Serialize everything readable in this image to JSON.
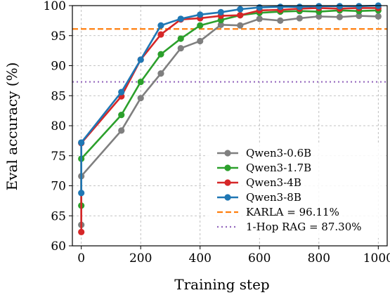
{
  "chart_data": {
    "type": "line",
    "xlabel": "Training step",
    "ylabel": "Eval accuracy (%)",
    "xlim": [
      -30,
      1030
    ],
    "ylim": [
      60,
      100
    ],
    "xticks": [
      0,
      200,
      400,
      600,
      800,
      1000
    ],
    "yticks": [
      60,
      65,
      70,
      75,
      80,
      85,
      90,
      95,
      100
    ],
    "xtick_labels": [
      "0",
      "200",
      "400",
      "600",
      "800",
      "1000"
    ],
    "ytick_labels": [
      "60",
      "65",
      "70",
      "75",
      "80",
      "85",
      "90",
      "95",
      "100"
    ],
    "grid": true,
    "legend_position": "lower-right",
    "series": [
      {
        "name": "Qwen3-0.6B",
        "color": "#7f7f7f",
        "x": [
          0,
          0,
          135,
          200,
          268,
          335,
          400,
          470,
          535,
          600,
          670,
          735,
          800,
          870,
          935,
          1000
        ],
        "y": [
          63.5,
          71.6,
          79.2,
          84.6,
          88.7,
          92.9,
          94.1,
          96.8,
          96.7,
          97.8,
          97.5,
          97.9,
          98.2,
          98.1,
          98.3,
          98.2
        ]
      },
      {
        "name": "Qwen3-1.7B",
        "color": "#2ca02c",
        "x": [
          0,
          0,
          135,
          200,
          268,
          335,
          400,
          470,
          535,
          600,
          670,
          735,
          800,
          870,
          935,
          1000
        ],
        "y": [
          66.7,
          74.5,
          81.8,
          87.3,
          91.9,
          94.5,
          96.7,
          97.6,
          98.4,
          98.8,
          99.0,
          99.1,
          99.0,
          99.2,
          99.1,
          99.2
        ]
      },
      {
        "name": "Qwen3-4B",
        "color": "#d62728",
        "x": [
          0,
          0,
          135,
          200,
          268,
          335,
          400,
          470,
          535,
          600,
          670,
          735,
          800,
          870,
          935,
          1000
        ],
        "y": [
          62.3,
          77.1,
          84.9,
          91.0,
          95.2,
          97.7,
          97.9,
          98.3,
          98.4,
          99.2,
          99.3,
          99.5,
          99.6,
          99.5,
          99.6,
          99.6
        ]
      },
      {
        "name": "Qwen3-8B",
        "color": "#1f77b4",
        "x": [
          0,
          0,
          135,
          200,
          268,
          335,
          400,
          470,
          535,
          600,
          670,
          735,
          800,
          870,
          935,
          1000
        ],
        "y": [
          68.8,
          77.2,
          85.6,
          91.0,
          96.7,
          97.8,
          98.5,
          98.9,
          99.4,
          99.7,
          99.8,
          99.8,
          99.9,
          99.9,
          99.9,
          100.0
        ]
      }
    ],
    "reference_lines": [
      {
        "name": "KARLA = 96.11%",
        "value": 96.11,
        "color": "#ff7f0e",
        "style": "dashed"
      },
      {
        "name": "1-Hop RAG = 87.30%",
        "value": 87.3,
        "color": "#9467bd",
        "style": "dotted"
      }
    ]
  }
}
